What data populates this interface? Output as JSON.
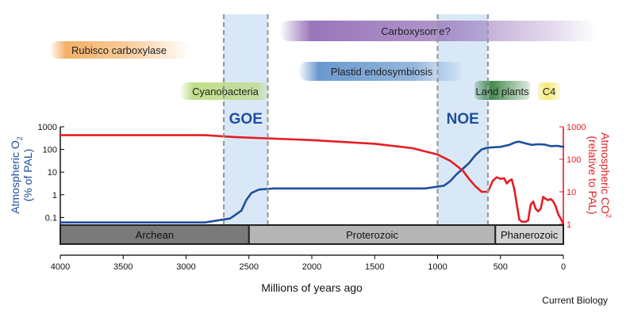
{
  "chart_data": {
    "type": "line",
    "xlabel": "Millions of years ago",
    "x_ticks": [
      4000,
      3500,
      3000,
      2500,
      2000,
      1500,
      1000,
      500,
      0
    ],
    "xlim": [
      4000,
      0
    ],
    "x_reversed": true,
    "left_axis": {
      "label_main": "Atmospheric O",
      "label_sub": "2",
      "label_line2": "(% of PAL)",
      "scale": "log",
      "ylim": [
        0.05,
        1000
      ],
      "tick_labels": [
        "1000",
        "100",
        "10",
        "1",
        "0.1"
      ],
      "tick_values": [
        1000,
        100,
        10,
        1,
        0.1
      ],
      "color": "#1f4e9c"
    },
    "right_axis": {
      "label_main": "Atmospheric CO",
      "label_sub": "2",
      "label_line2": "(relative to PAL)",
      "scale": "log",
      "ylim": [
        1,
        1000
      ],
      "tick_labels": [
        "1000",
        "100",
        "10",
        "1"
      ],
      "tick_values": [
        1000,
        100,
        10,
        1
      ],
      "color": "#e31e24"
    },
    "series": [
      {
        "axis": "left",
        "color": "#1f4e9c",
        "points": [
          [
            4000,
            0.06
          ],
          [
            3200,
            0.06
          ],
          [
            2850,
            0.06
          ],
          [
            2650,
            0.09
          ],
          [
            2560,
            0.2
          ],
          [
            2520,
            0.6
          ],
          [
            2480,
            1.2
          ],
          [
            2420,
            1.7
          ],
          [
            2300,
            1.9
          ],
          [
            2000,
            1.9
          ],
          [
            1500,
            1.9
          ],
          [
            1100,
            1.9
          ],
          [
            950,
            2.5
          ],
          [
            900,
            4
          ],
          [
            850,
            8
          ],
          [
            800,
            14
          ],
          [
            750,
            25
          ],
          [
            700,
            55
          ],
          [
            650,
            100
          ],
          [
            600,
            120
          ],
          [
            500,
            130
          ],
          [
            430,
            160
          ],
          [
            380,
            210
          ],
          [
            350,
            220
          ],
          [
            300,
            185
          ],
          [
            250,
            160
          ],
          [
            200,
            170
          ],
          [
            150,
            165
          ],
          [
            100,
            140
          ],
          [
            50,
            145
          ],
          [
            0,
            130
          ]
        ]
      },
      {
        "axis": "right",
        "color": "#e31e24",
        "points": [
          [
            4000,
            550
          ],
          [
            2850,
            550
          ],
          [
            2600,
            480
          ],
          [
            2000,
            390
          ],
          [
            1500,
            300
          ],
          [
            1200,
            220
          ],
          [
            1000,
            140
          ],
          [
            900,
            90
          ],
          [
            800,
            45
          ],
          [
            750,
            25
          ],
          [
            700,
            15
          ],
          [
            650,
            10
          ],
          [
            600,
            10
          ],
          [
            560,
            22
          ],
          [
            530,
            28
          ],
          [
            500,
            25
          ],
          [
            470,
            26
          ],
          [
            450,
            18
          ],
          [
            430,
            22
          ],
          [
            410,
            24
          ],
          [
            390,
            12
          ],
          [
            370,
            4
          ],
          [
            350,
            1.4
          ],
          [
            330,
            1.2
          ],
          [
            300,
            1.2
          ],
          [
            280,
            1.3
          ],
          [
            260,
            4
          ],
          [
            240,
            5
          ],
          [
            220,
            3
          ],
          [
            200,
            2.5
          ],
          [
            180,
            3
          ],
          [
            160,
            7
          ],
          [
            140,
            6
          ],
          [
            120,
            5.5
          ],
          [
            100,
            6
          ],
          [
            80,
            5
          ],
          [
            60,
            3.5
          ],
          [
            40,
            2
          ],
          [
            20,
            1.5
          ],
          [
            0,
            1
          ]
        ]
      }
    ],
    "events": [
      {
        "label": "GOE",
        "x_start": 2700,
        "x_end": 2350,
        "color": "#1f4e9c"
      },
      {
        "label": "NOE",
        "x_start": 1000,
        "x_end": 600,
        "color": "#1f4e9c"
      }
    ],
    "timeline_bar": [
      {
        "label": "Archean",
        "x_start": 4000,
        "x_end": 2500
      },
      {
        "label": "Proterozoic",
        "x_start": 2500,
        "x_end": 541
      },
      {
        "label": "Phanerozoic",
        "x_start": 541,
        "x_end": 0
      }
    ],
    "annotations": [
      {
        "label": "Rubisco carboxylase",
        "color": "#f2a24b"
      },
      {
        "label": "Carboxysome?",
        "color": "#8e66b3"
      },
      {
        "label": "Plastid endosymbiosis",
        "color": "#4f86c6"
      },
      {
        "label": "Cyanobacteria",
        "color": "#b9d97c"
      },
      {
        "label": "Land plants",
        "color": "#2e7d3b"
      },
      {
        "label": "C4",
        "color": "#f4ea7a"
      }
    ],
    "footer": "Current Biology"
  }
}
